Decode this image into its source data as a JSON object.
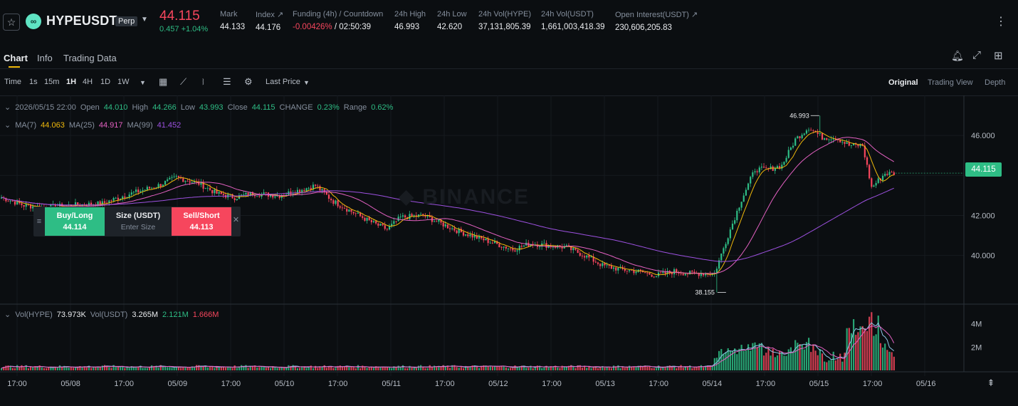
{
  "header": {
    "symbol": "HYPEUSDT",
    "badge": "Perp",
    "last_price": "44.115",
    "change": "0.457 +1.04%",
    "stats": [
      {
        "label": "Mark",
        "value": "44.133"
      },
      {
        "label": "Index ↗",
        "value": "44.176"
      },
      {
        "label": "Funding (4h) / Countdown",
        "value_a": "-0.00426%",
        "value_b": "/ 02:50:39"
      },
      {
        "label": "24h High",
        "value": "46.993"
      },
      {
        "label": "24h Low",
        "value": "42.620"
      },
      {
        "label": "24h Vol(HYPE)",
        "value": "37,131,805.39"
      },
      {
        "label": "24h Vol(USDT)",
        "value": "1,661,003,418.39"
      },
      {
        "label": "Open Interest(USDT) ↗",
        "value": "230,606,205.83"
      }
    ]
  },
  "tabs": [
    "Chart",
    "Info",
    "Trading Data"
  ],
  "toolbar": {
    "intervals": [
      "Time",
      "1s",
      "15m",
      "1H",
      "4H",
      "1D",
      "1W"
    ],
    "price_type": "Last Price",
    "views": [
      "Original",
      "Trading View",
      "Depth"
    ]
  },
  "candle_info": {
    "date": "2026/05/15 22:00",
    "open_label": "Open",
    "open": "44.010",
    "high_label": "High",
    "high": "44.266",
    "low_label": "Low",
    "low": "43.993",
    "close_label": "Close",
    "close": "44.115",
    "change_label": "CHANGE",
    "change": "0.23%",
    "range_label": "Range",
    "range": "0.62%"
  },
  "ma_info": {
    "ma7_label": "MA(7)",
    "ma7": "44.063",
    "ma25_label": "MA(25)",
    "ma25": "44.917",
    "ma99_label": "MA(99)",
    "ma99": "41.452"
  },
  "vol_info": {
    "label_hype": "Vol(HYPE)",
    "vol_hype": "73.973K",
    "label_usdt": "Vol(USDT)",
    "vol_usdt": "3.265M",
    "ma1": "2.121M",
    "ma2": "1.666M"
  },
  "order_widget": {
    "buy_label": "Buy/Long",
    "buy_price": "44.114",
    "size_label": "Size (USDT)",
    "size_placeholder": "Enter Size",
    "sell_label": "Sell/Short",
    "sell_price": "44.113"
  },
  "colors": {
    "up": "#2ebd85",
    "down": "#f6465d",
    "ma7": "#f0b90b",
    "ma25": "#e461c2",
    "ma99": "#9d51e0"
  },
  "chart_data": {
    "type": "candlestick",
    "price_axis": [
      "46.000",
      "44.000",
      "42.000",
      "40.000"
    ],
    "volume_axis": [
      "4M",
      "2M"
    ],
    "time_axis": [
      "17:00",
      "05/08",
      "17:00",
      "05/09",
      "17:00",
      "05/10",
      "17:00",
      "05/11",
      "17:00",
      "05/12",
      "17:00",
      "05/13",
      "17:00",
      "05/14",
      "17:00",
      "05/15",
      "17:00",
      "05/16"
    ],
    "high_marker": "46.993",
    "low_marker": "38.155",
    "current_price": "44.115",
    "ylim": [
      37.6,
      48.0
    ],
    "vol_ylim": [
      0,
      5200000
    ],
    "close_anchors": [
      [
        0,
        42.9
      ],
      [
        10,
        42.5
      ],
      [
        20,
        42.4
      ],
      [
        30,
        42.5
      ],
      [
        45,
        42.6
      ],
      [
        55,
        43.0
      ],
      [
        70,
        43.5
      ],
      [
        78,
        43.9
      ],
      [
        88,
        43.6
      ],
      [
        96,
        43.1
      ],
      [
        104,
        42.9
      ],
      [
        112,
        43.1
      ],
      [
        124,
        43.0
      ],
      [
        134,
        43.3
      ],
      [
        140,
        43.5
      ],
      [
        148,
        42.7
      ],
      [
        156,
        42.2
      ],
      [
        166,
        41.6
      ],
      [
        172,
        41.3
      ],
      [
        178,
        41.9
      ],
      [
        188,
        42.0
      ],
      [
        196,
        41.6
      ],
      [
        204,
        41.2
      ],
      [
        212,
        40.9
      ],
      [
        220,
        40.6
      ],
      [
        228,
        40.3
      ],
      [
        236,
        40.6
      ],
      [
        244,
        40.5
      ],
      [
        252,
        40.4
      ],
      [
        260,
        40.0
      ],
      [
        268,
        39.5
      ],
      [
        276,
        39.3
      ],
      [
        284,
        39.2
      ],
      [
        292,
        39.0
      ],
      [
        300,
        39.2
      ],
      [
        306,
        39.1
      ],
      [
        318,
        39.1
      ],
      [
        324,
        41.0
      ],
      [
        330,
        42.8
      ],
      [
        336,
        44.3
      ],
      [
        342,
        44.3
      ],
      [
        348,
        44.5
      ],
      [
        354,
        45.8
      ],
      [
        360,
        46.4
      ],
      [
        366,
        45.9
      ],
      [
        372,
        45.9
      ],
      [
        378,
        45.5
      ],
      [
        384,
        45.5
      ],
      [
        388,
        43.4
      ],
      [
        394,
        44.1
      ],
      [
        398,
        44.1
      ]
    ],
    "volume_spikes": [
      [
        324,
        1.9
      ],
      [
        330,
        2.2
      ],
      [
        336,
        2.4
      ],
      [
        342,
        2.0
      ],
      [
        354,
        2.6
      ],
      [
        360,
        2.8
      ],
      [
        380,
        4.4
      ],
      [
        384,
        3.8
      ],
      [
        388,
        5.0
      ],
      [
        390,
        3.1
      ],
      [
        394,
        2.3
      ],
      [
        396,
        1.6
      ],
      [
        398,
        0.27
      ]
    ]
  }
}
